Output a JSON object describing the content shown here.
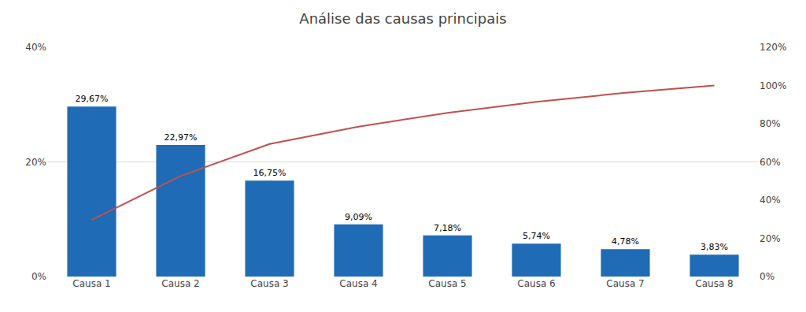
{
  "chart_data": {
    "type": "bar",
    "title": "Análise das causas principais",
    "categories": [
      "Causa 1",
      "Causa 2",
      "Causa 3",
      "Causa 4",
      "Causa 5",
      "Causa 6",
      "Causa 7",
      "Causa 8"
    ],
    "series": [
      {
        "type": "bar",
        "color": "#1F6BB5",
        "values": [
          29.67,
          22.97,
          16.75,
          9.09,
          7.18,
          5.74,
          4.78,
          3.83
        ],
        "value_labels": [
          "29,67%",
          "22,97%",
          "16,75%",
          "9,09%",
          "7,18%",
          "5,74%",
          "4,78%",
          "3,83%"
        ],
        "data_labels": true
      },
      {
        "type": "line",
        "axis": "y2",
        "color": "#C0504D",
        "values": [
          29.67,
          52.64,
          69.39,
          78.48,
          85.66,
          91.4,
          96.18,
          100.01
        ]
      }
    ],
    "ylim": [
      0,
      40
    ],
    "yticks": [
      {
        "value": 0,
        "label": "0%"
      },
      {
        "value": 20,
        "label": "20%"
      },
      {
        "value": 40,
        "label": "40%"
      }
    ],
    "y2lim": [
      0,
      120
    ],
    "y2ticks": [
      {
        "value": 0,
        "label": "0%"
      },
      {
        "value": 20,
        "label": "20%"
      },
      {
        "value": 40,
        "label": "40%"
      },
      {
        "value": 60,
        "label": "60%"
      },
      {
        "value": 80,
        "label": "80%"
      },
      {
        "value": 100,
        "label": "100%"
      },
      {
        "value": 120,
        "label": "120%"
      }
    ],
    "grid": true
  }
}
